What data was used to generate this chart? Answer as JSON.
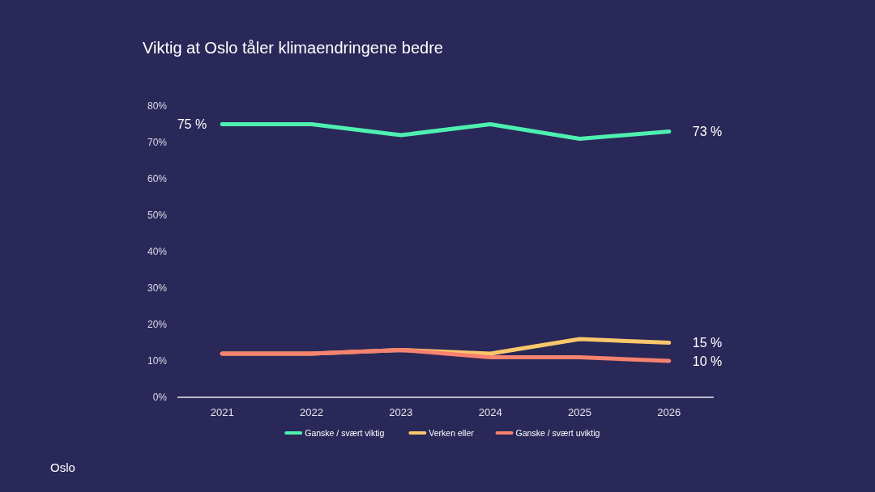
{
  "chart_data": {
    "type": "line",
    "title": "Viktig at Oslo tåler klimaendringene bedre",
    "categories": [
      "2021",
      "2022",
      "2023",
      "2024",
      "2025",
      "2026"
    ],
    "series": [
      {
        "name": "Ganske / svært viktig",
        "color": "#4ef0b0",
        "values": [
          75,
          75,
          72,
          75,
          71,
          73
        ],
        "value_labels": [
          "75 %",
          null,
          null,
          null,
          null,
          "73 %"
        ]
      },
      {
        "name": "Verken eller",
        "color": "#f9c76b",
        "values": [
          12,
          12,
          13,
          12,
          16,
          15
        ],
        "value_labels": [
          null,
          null,
          null,
          null,
          null,
          "15 %"
        ]
      },
      {
        "name": "Ganske / svært uviktig",
        "color": "#f7826f",
        "values": [
          12,
          12,
          13,
          11,
          11,
          10
        ],
        "value_labels": [
          null,
          null,
          null,
          null,
          null,
          "10 %"
        ]
      }
    ],
    "ylim": [
      0,
      80
    ],
    "yticks": [
      {
        "value": 0,
        "label": "0%"
      },
      {
        "value": 10,
        "label": "10%"
      },
      {
        "value": 20,
        "label": "20%"
      },
      {
        "value": 30,
        "label": "30%"
      },
      {
        "value": 40,
        "label": "40%"
      },
      {
        "value": 50,
        "label": "50%"
      },
      {
        "value": 60,
        "label": "60%"
      },
      {
        "value": 70,
        "label": "70%"
      },
      {
        "value": 80,
        "label": "80%"
      }
    ],
    "legend": "bottom",
    "annotations": [
      "Oslo"
    ]
  }
}
